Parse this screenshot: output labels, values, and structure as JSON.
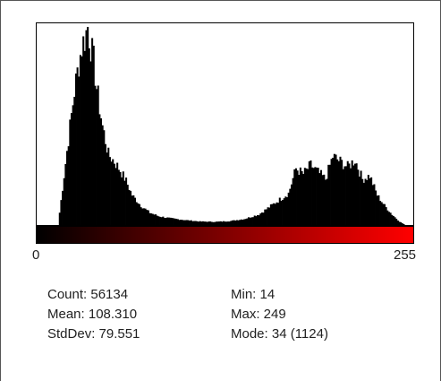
{
  "histogram": {
    "x_min_label": "0",
    "x_max_label": "255",
    "lut_color_start": "#000000",
    "lut_color_end": "#ff0000",
    "bar_color": "#000000"
  },
  "stats": {
    "count": "Count: 56134",
    "mean": "Mean: 108.310",
    "stddev": "StdDev: 79.551",
    "min": "Min: 14",
    "max": "Max: 249",
    "mode": "Mode: 34 (1124)"
  },
  "chart_data": {
    "type": "area",
    "x": [
      14,
      20,
      25,
      28,
      30,
      32,
      34,
      36,
      38,
      40,
      44,
      48,
      52,
      56,
      60,
      64,
      70,
      76,
      82,
      90,
      100,
      110,
      120,
      130,
      140,
      150,
      160,
      170,
      175,
      180,
      185,
      190,
      195,
      200,
      205,
      210,
      215,
      220,
      225,
      230,
      235,
      240,
      245,
      249
    ],
    "values": [
      0,
      420,
      760,
      920,
      1010,
      1060,
      1124,
      1020,
      930,
      780,
      560,
      400,
      360,
      310,
      250,
      170,
      110,
      70,
      50,
      38,
      28,
      20,
      18,
      22,
      34,
      60,
      120,
      180,
      320,
      290,
      340,
      300,
      260,
      390,
      360,
      330,
      370,
      260,
      280,
      170,
      110,
      60,
      20,
      0
    ],
    "xlim": [
      0,
      255
    ],
    "ylim": [
      0,
      1124
    ]
  }
}
